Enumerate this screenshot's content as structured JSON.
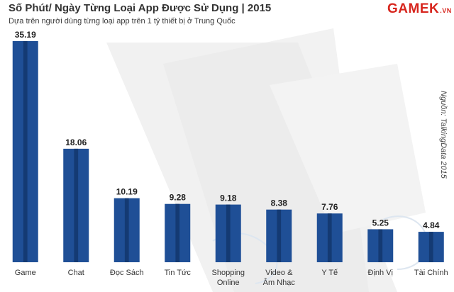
{
  "title": "Số Phút/ Ngày Từng Loại App Được Sử Dụng | 2015",
  "subtitle": "Dựa trên người dùng từng loại app trên 1 tỷ thiết bị ở Trung Quốc",
  "logo": {
    "main": "GAMEK",
    "suffix": ".VN"
  },
  "source": "Nguồn: TalkingData 2015",
  "colors": {
    "bar": "#1f4f96",
    "bar_dark": "#143a73",
    "logo": "#d7261e"
  },
  "chart_data": {
    "type": "bar",
    "title": "Số Phút/ Ngày Từng Loại App Được Sử Dụng | 2015",
    "xlabel": "",
    "ylabel": "",
    "ylim": [
      0,
      35.19
    ],
    "grid": false,
    "categories": [
      [
        "Game"
      ],
      [
        "Chat"
      ],
      [
        "Đọc Sách"
      ],
      [
        "Tin Tức"
      ],
      [
        "Shopping",
        "Online"
      ],
      [
        "Video &",
        "Âm Nhạc"
      ],
      [
        "Y Tế"
      ],
      [
        "Định Vị"
      ],
      [
        "Tài Chính"
      ]
    ],
    "values": [
      35.19,
      18.06,
      10.19,
      9.28,
      9.18,
      8.38,
      7.76,
      5.25,
      4.84
    ],
    "labels": [
      "35.19",
      "18.06",
      "10.19",
      "9.28",
      "9.18",
      "8.38",
      "7.76",
      "5.25",
      "4.84"
    ]
  }
}
